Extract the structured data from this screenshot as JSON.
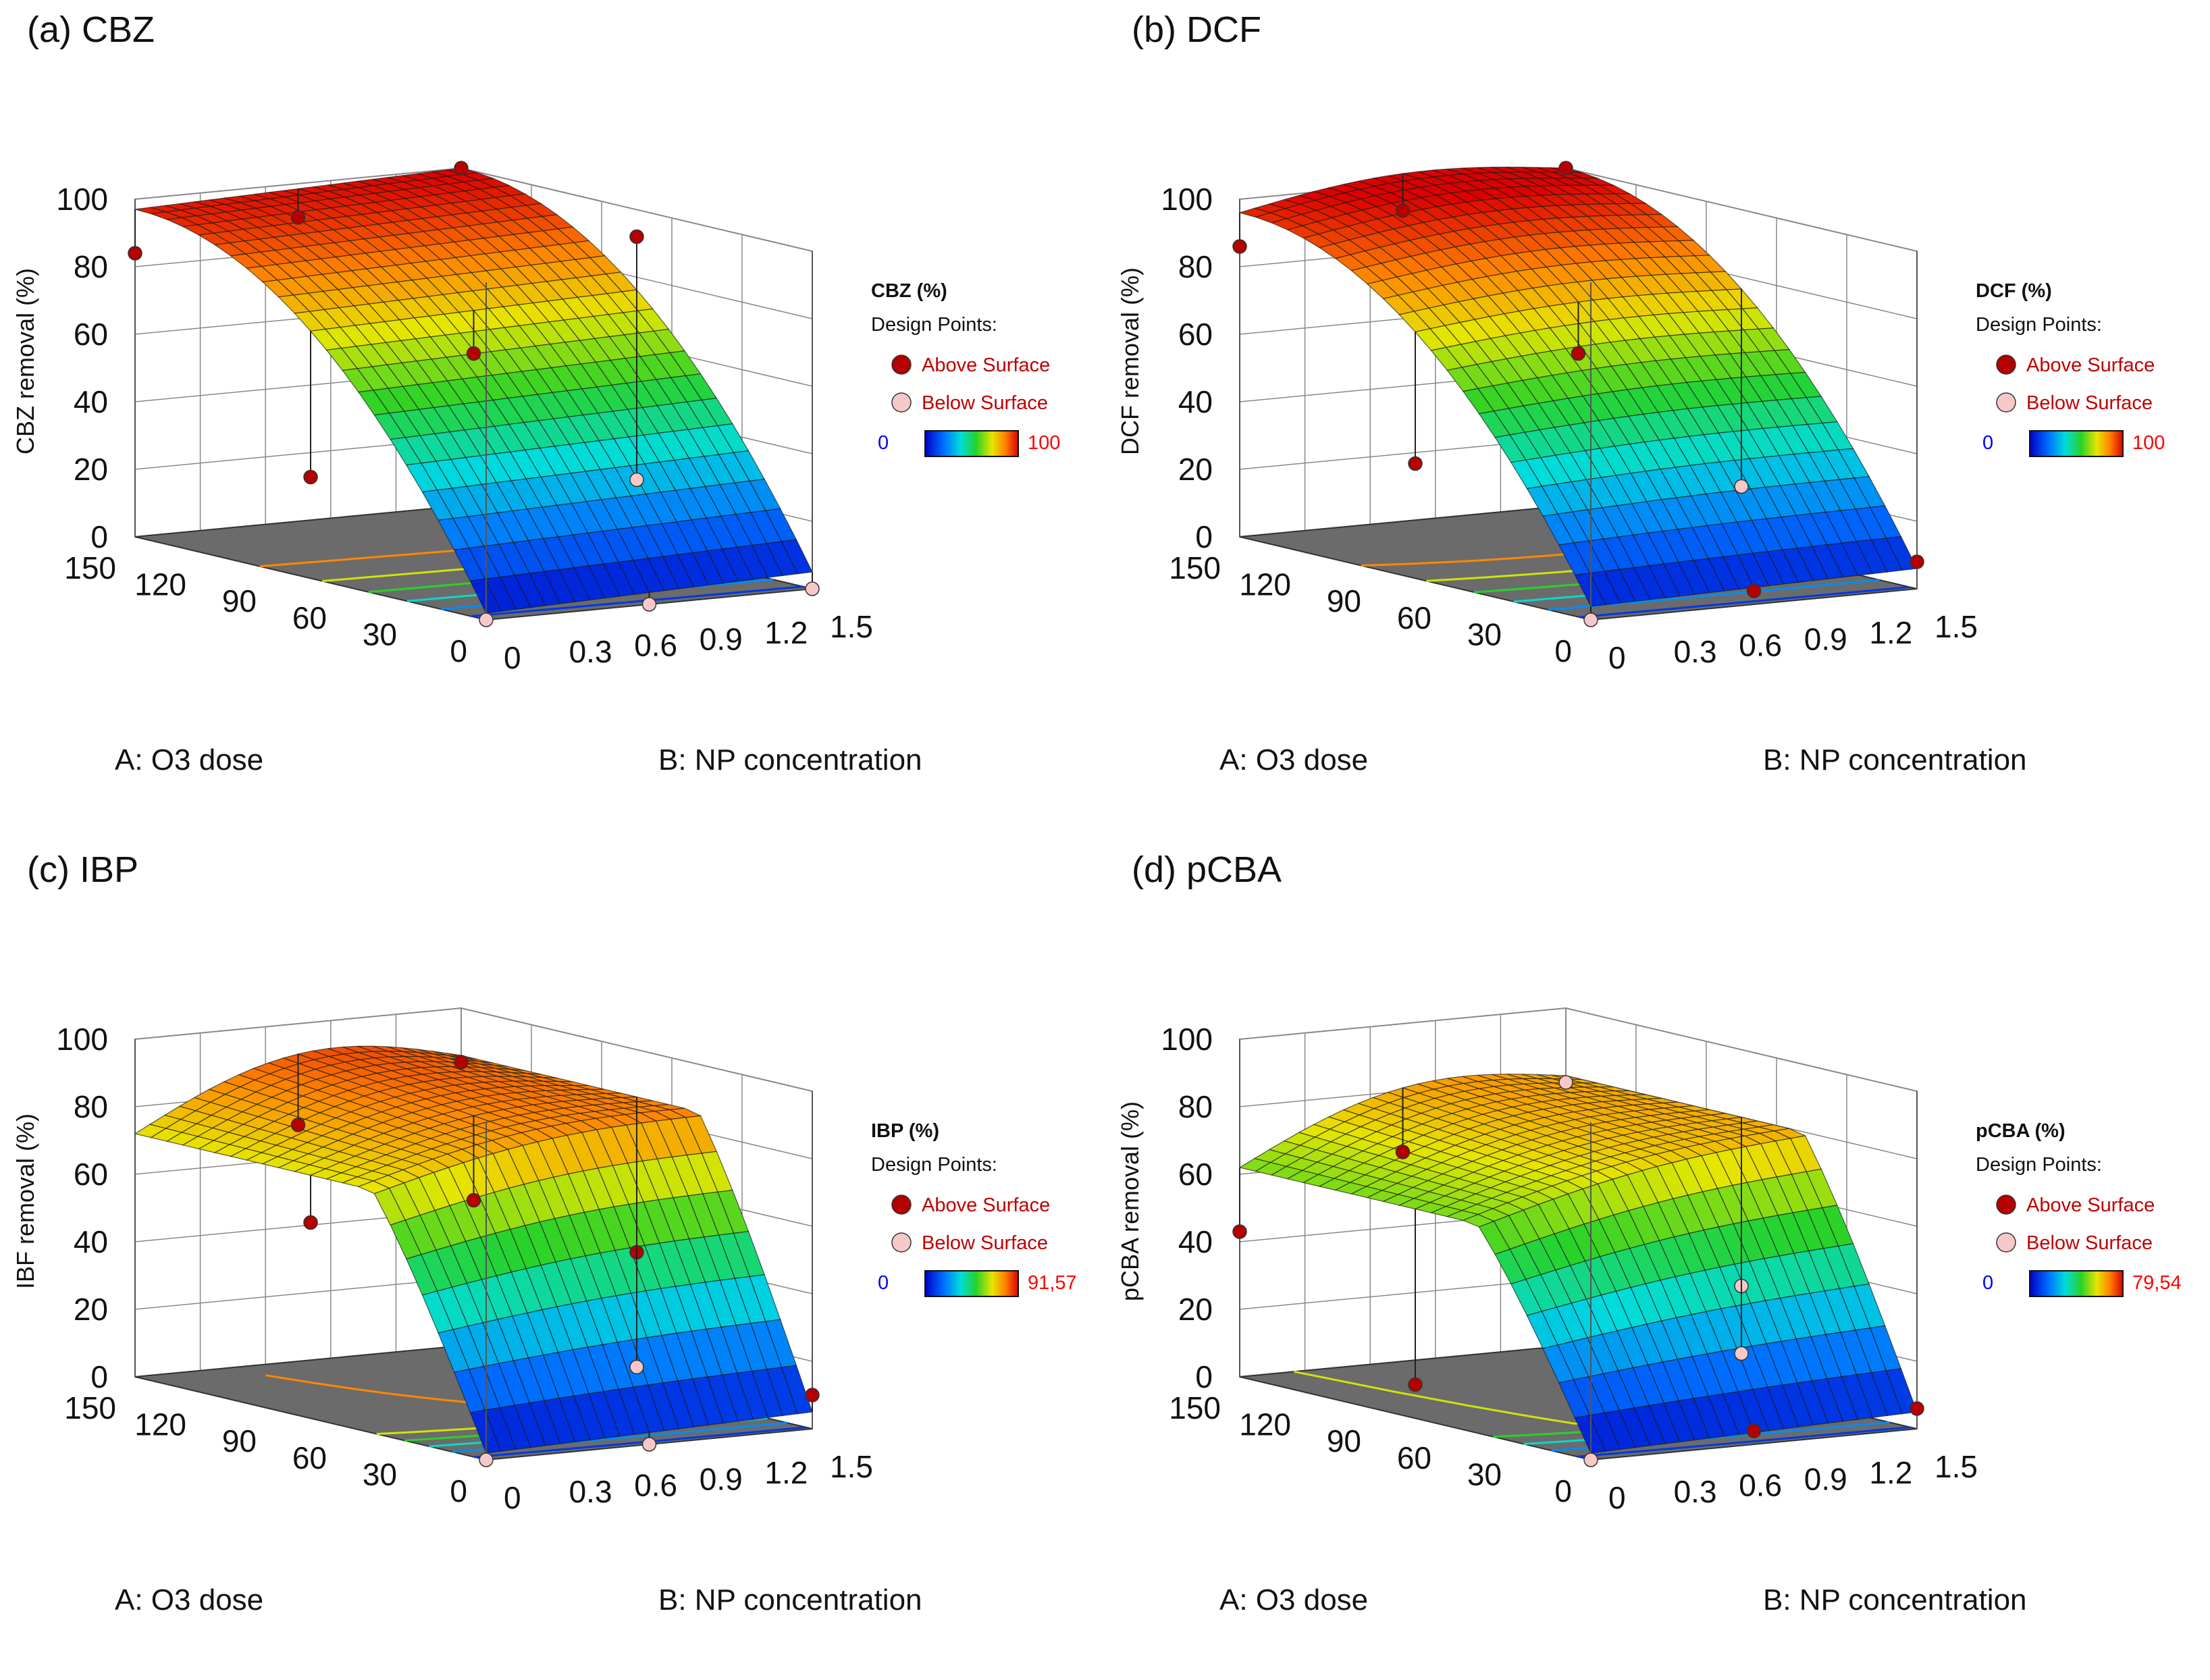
{
  "chart_data": [
    {
      "type": "surface3d",
      "panel_label": "(a) CBZ",
      "zlabel": "CBZ removal (%)",
      "xlabel": "A: O3 dose",
      "ylabel": "B: NP concentration",
      "x_ticks": [
        "0",
        "30",
        "60",
        "90",
        "120",
        "150"
      ],
      "y_ticks": [
        "0",
        "0.3",
        "0.6",
        "0.9",
        "1.2",
        "1.5"
      ],
      "z_ticks": [
        "0",
        "20",
        "40",
        "60",
        "80",
        "100"
      ],
      "xlim": [
        0,
        150
      ],
      "ylim": [
        0,
        1.5
      ],
      "zlim": [
        0,
        100
      ],
      "legend": {
        "title": "CBZ (%)",
        "subtitle": "Design Points:",
        "above": "Above Surface",
        "below": "Below Surface",
        "min": "0",
        "max": "100"
      },
      "corner_values": {
        "A0_B0": 2,
        "A150_B0": 97,
        "A0_B1.5": 5,
        "A150_B1.5": 100
      },
      "surface_shape": {
        "a_peak": 1.0,
        "b_bump": 0.0,
        "saturation": true
      },
      "design_points": [
        {
          "a": 150,
          "b": 0,
          "z": 84,
          "position": "above"
        },
        {
          "a": 150,
          "b": 1.5,
          "z": 100,
          "position": "above"
        },
        {
          "a": 150,
          "b": 0.75,
          "z": 90,
          "position": "above"
        },
        {
          "a": 75,
          "b": 0,
          "z": 30,
          "position": "above"
        },
        {
          "a": 75,
          "b": 0.75,
          "z": 62,
          "position": "above"
        },
        {
          "a": 75,
          "b": 1.5,
          "z": 92,
          "position": "above"
        },
        {
          "a": 0,
          "b": 0,
          "z": 0,
          "position": "below"
        },
        {
          "a": 0,
          "b": 0.75,
          "z": 0,
          "position": "below"
        },
        {
          "a": 0,
          "b": 1.5,
          "z": 0,
          "position": "below"
        },
        {
          "a": 75,
          "b": 1.5,
          "z": 20,
          "position": "below"
        }
      ]
    },
    {
      "type": "surface3d",
      "panel_label": "(b) DCF",
      "zlabel": "DCF removal (%)",
      "xlabel": "A: O3 dose",
      "ylabel": "B: NP concentration",
      "x_ticks": [
        "0",
        "30",
        "60",
        "90",
        "120",
        "150"
      ],
      "y_ticks": [
        "0",
        "0.3",
        "0.6",
        "0.9",
        "1.2",
        "1.5"
      ],
      "z_ticks": [
        "0",
        "20",
        "40",
        "60",
        "80",
        "100"
      ],
      "xlim": [
        0,
        150
      ],
      "ylim": [
        0,
        1.5
      ],
      "zlim": [
        0,
        100
      ],
      "legend": {
        "title": "DCF (%)",
        "subtitle": "Design Points:",
        "above": "Above Surface",
        "below": "Below Surface",
        "min": "0",
        "max": "100"
      },
      "corner_values": {
        "A0_B0": 4,
        "A150_B0": 96,
        "A0_B1.5": 6,
        "A150_B1.5": 100
      },
      "surface_shape": {
        "a_peak": 1.0,
        "b_bump": 0.05,
        "saturation": true
      },
      "design_points": [
        {
          "a": 150,
          "b": 0,
          "z": 86,
          "position": "above"
        },
        {
          "a": 150,
          "b": 1.5,
          "z": 100,
          "position": "above"
        },
        {
          "a": 150,
          "b": 0.75,
          "z": 92,
          "position": "above"
        },
        {
          "a": 75,
          "b": 0,
          "z": 34,
          "position": "above"
        },
        {
          "a": 75,
          "b": 0.75,
          "z": 62,
          "position": "above"
        },
        {
          "a": 0,
          "b": 1.5,
          "z": 8,
          "position": "above"
        },
        {
          "a": 0,
          "b": 0.75,
          "z": 4,
          "position": "above"
        },
        {
          "a": 0,
          "b": 0,
          "z": 0,
          "position": "below"
        },
        {
          "a": 75,
          "b": 1.5,
          "z": 18,
          "position": "below"
        }
      ]
    },
    {
      "type": "surface3d",
      "panel_label": "(c) IBP",
      "zlabel": "IBF removal (%)",
      "xlabel": "A: O3 dose",
      "ylabel": "B: NP concentration",
      "x_ticks": [
        "0",
        "30",
        "60",
        "90",
        "120",
        "150"
      ],
      "y_ticks": [
        "0",
        "0.3",
        "0.6",
        "0.9",
        "1.2",
        "1.5"
      ],
      "z_ticks": [
        "0",
        "20",
        "40",
        "60",
        "80",
        "100"
      ],
      "xlim": [
        0,
        150
      ],
      "ylim": [
        0,
        1.5
      ],
      "zlim": [
        0,
        100
      ],
      "legend": {
        "title": "IBP (%)",
        "subtitle": "Design Points:",
        "above": "Above Surface",
        "below": "Below Surface",
        "min": "0",
        "max": "91,57"
      },
      "corner_values": {
        "A0_B0": 2,
        "A150_B0": 72,
        "A0_B1.5": 5,
        "A150_B1.5": 86
      },
      "surface_shape": {
        "a_peak": 0.85,
        "b_bump": 0.12,
        "saturation": false
      },
      "design_points": [
        {
          "a": 150,
          "b": 1.5,
          "z": 84,
          "position": "above"
        },
        {
          "a": 150,
          "b": 0.75,
          "z": 70,
          "position": "above"
        },
        {
          "a": 75,
          "b": 0,
          "z": 58,
          "position": "above"
        },
        {
          "a": 75,
          "b": 0.75,
          "z": 60,
          "position": "above"
        },
        {
          "a": 75,
          "b": 1.5,
          "z": 40,
          "position": "above"
        },
        {
          "a": 0,
          "b": 1.5,
          "z": 10,
          "position": "above"
        },
        {
          "a": 0,
          "b": 0,
          "z": 0,
          "position": "below"
        },
        {
          "a": 0,
          "b": 0.75,
          "z": 0,
          "position": "below"
        },
        {
          "a": 75,
          "b": 1.5,
          "z": 6,
          "position": "below"
        }
      ]
    },
    {
      "type": "surface3d",
      "panel_label": "(d) pCBA",
      "zlabel": "pCBA removal (%)",
      "xlabel": "A: O3 dose",
      "ylabel": "B: NP concentration",
      "x_ticks": [
        "0",
        "30",
        "60",
        "90",
        "120",
        "150"
      ],
      "y_ticks": [
        "0",
        "0.3",
        "0.6",
        "0.9",
        "1.2",
        "1.5"
      ],
      "z_ticks": [
        "0",
        "20",
        "40",
        "60",
        "80",
        "100"
      ],
      "xlim": [
        0,
        150
      ],
      "ylim": [
        0,
        1.5
      ],
      "zlim": [
        0,
        100
      ],
      "legend": {
        "title": "pCBA (%)",
        "subtitle": "Design Points:",
        "above": "Above Surface",
        "below": "Below Surface",
        "min": "0",
        "max": "79,54"
      },
      "corner_values": {
        "A0_B0": 2,
        "A150_B0": 62,
        "A0_B1.5": 5,
        "A150_B1.5": 80
      },
      "surface_shape": {
        "a_peak": 0.85,
        "b_bump": 0.1,
        "saturation": false
      },
      "design_points": [
        {
          "a": 150,
          "b": 0,
          "z": 43,
          "position": "above"
        },
        {
          "a": 150,
          "b": 0.75,
          "z": 62,
          "position": "above"
        },
        {
          "a": 75,
          "b": 0,
          "z": 10,
          "position": "above"
        },
        {
          "a": 0,
          "b": 1.5,
          "z": 6,
          "position": "above"
        },
        {
          "a": 0,
          "b": 0.75,
          "z": 4,
          "position": "above"
        },
        {
          "a": 150,
          "b": 1.5,
          "z": 78,
          "position": "below"
        },
        {
          "a": 75,
          "b": 1.5,
          "z": 30,
          "position": "below"
        },
        {
          "a": 0,
          "b": 0,
          "z": 0,
          "position": "below"
        },
        {
          "a": 75,
          "b": 1.5,
          "z": 10,
          "position": "below"
        }
      ]
    }
  ],
  "colors": {
    "above_point": "#b40000",
    "below_point": "#f7c8c8",
    "floor": "#6b6b6b",
    "grid": "#888888",
    "legend_text": "#c00000",
    "legend_min": "#0000ff",
    "legend_max": "#ff0000"
  }
}
